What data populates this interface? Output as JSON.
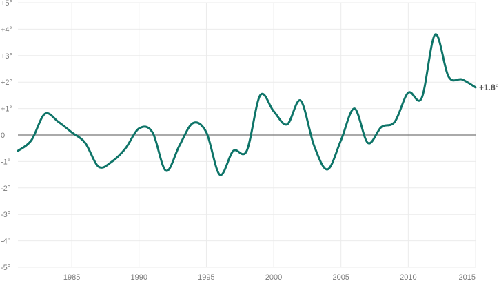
{
  "chart_data": {
    "type": "line",
    "title": "",
    "xlabel": "",
    "ylabel": "",
    "xlim": [
      1981,
      2015
    ],
    "ylim": [
      -5,
      5
    ],
    "grid": true,
    "zero_line": true,
    "x_ticks": [
      {
        "value": 1985,
        "label": "1985"
      },
      {
        "value": 1990,
        "label": "1990"
      },
      {
        "value": 1995,
        "label": "1995"
      },
      {
        "value": 2000,
        "label": "2000"
      },
      {
        "value": 2005,
        "label": "2005"
      },
      {
        "value": 2010,
        "label": "2010"
      },
      {
        "value": 2015,
        "label": "2015"
      }
    ],
    "y_ticks": [
      {
        "value": 5,
        "label": "+5°"
      },
      {
        "value": 4,
        "label": "+4°"
      },
      {
        "value": 3,
        "label": "+3°"
      },
      {
        "value": 2,
        "label": "+2°"
      },
      {
        "value": 1,
        "label": "+1°"
      },
      {
        "value": 0,
        "label": "0"
      },
      {
        "value": -1,
        "label": "-1°"
      },
      {
        "value": -2,
        "label": "-2°"
      },
      {
        "value": -3,
        "label": "-3°"
      },
      {
        "value": -4,
        "label": "-4°"
      },
      {
        "value": -5,
        "label": "-5°"
      }
    ],
    "series": [
      {
        "color": "#0e7468",
        "x": [
          1981,
          1982,
          1983,
          1984,
          1985,
          1986,
          1987,
          1988,
          1989,
          1990,
          1991,
          1992,
          1993,
          1994,
          1995,
          1996,
          1997,
          1998,
          1999,
          2000,
          2001,
          2002,
          2003,
          2004,
          2005,
          2006,
          2007,
          2008,
          2009,
          2010,
          2011,
          2012,
          2013,
          2014,
          2015
        ],
        "y": [
          -0.6,
          -0.2,
          0.8,
          0.5,
          0.1,
          -0.3,
          -1.2,
          -1.0,
          -0.5,
          0.25,
          0.1,
          -1.35,
          -0.4,
          0.45,
          0.1,
          -1.5,
          -0.6,
          -0.6,
          1.5,
          0.9,
          0.4,
          1.3,
          -0.4,
          -1.3,
          -0.2,
          1.0,
          -0.3,
          0.3,
          0.5,
          1.6,
          1.4,
          3.8,
          2.2,
          2.1,
          1.8
        ]
      }
    ],
    "end_label": "+1.8°"
  }
}
